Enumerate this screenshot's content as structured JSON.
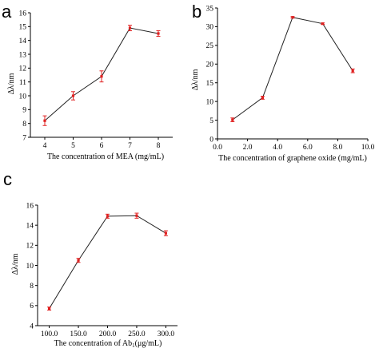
{
  "chart_data": [
    {
      "panel": "a",
      "type": "line",
      "xlabel": "The concentration of MEA (mg/mL)",
      "ylabel": "Δλ/nm",
      "xlim": [
        4,
        8
      ],
      "ylim": [
        7,
        16
      ],
      "xticks": [
        4,
        5,
        6,
        7,
        8
      ],
      "xtick_labels": [
        "4",
        "5",
        "6",
        "7",
        "8"
      ],
      "yticks": [
        7,
        8,
        9,
        10,
        11,
        12,
        13,
        14,
        15,
        16
      ],
      "ytick_labels": [
        "7",
        "8",
        "9",
        "10",
        "11",
        "12",
        "13",
        "14",
        "15",
        "16"
      ],
      "series": [
        {
          "x": [
            4,
            5,
            6,
            7,
            8
          ],
          "values": [
            8.2,
            10.0,
            11.4,
            14.9,
            14.5
          ],
          "errors": [
            0.35,
            0.3,
            0.4,
            0.2,
            0.2
          ]
        }
      ]
    },
    {
      "panel": "b",
      "type": "line",
      "xlabel": "The concentration of graphene oxide (mg/mL)",
      "ylabel": "Δλ/nm",
      "xlim": [
        0,
        10
      ],
      "ylim": [
        0,
        35
      ],
      "xticks": [
        0,
        2,
        4,
        6,
        8,
        10
      ],
      "xtick_labels": [
        "0.0",
        "2.0",
        "4.0",
        "6.0",
        "8.0",
        "10.0"
      ],
      "yticks": [
        0,
        5,
        10,
        15,
        20,
        25,
        30,
        35
      ],
      "ytick_labels": [
        "0",
        "5",
        "10",
        "15",
        "20",
        "25",
        "30",
        "35"
      ],
      "series": [
        {
          "x": [
            1,
            3,
            5,
            7,
            9
          ],
          "values": [
            5.1,
            11.0,
            32.5,
            30.8,
            18.2
          ],
          "errors": [
            0.5,
            0.4,
            0.2,
            0.2,
            0.5
          ]
        }
      ]
    },
    {
      "panel": "c",
      "type": "line",
      "xlabel": "The concentration of Ab1(μg/mL)",
      "xlabel_parts": {
        "before": "The concentration of Ab",
        "sub": "1",
        "after": "(μg/mL)"
      },
      "ylabel": "Δλ/nm",
      "xlim": [
        80,
        320
      ],
      "ylim": [
        4,
        16
      ],
      "xticks": [
        100,
        150,
        200,
        250,
        300
      ],
      "xtick_labels": [
        "100.0",
        "150.0",
        "200.0",
        "250.0",
        "300.0"
      ],
      "yticks": [
        4,
        6,
        8,
        10,
        12,
        14,
        16
      ],
      "ytick_labels": [
        "4",
        "6",
        "8",
        "10",
        "12",
        "14",
        "16"
      ],
      "series": [
        {
          "x": [
            100,
            150,
            200,
            250,
            300
          ],
          "values": [
            5.7,
            10.5,
            14.9,
            14.95,
            13.2
          ],
          "errors": [
            0.15,
            0.2,
            0.2,
            0.25,
            0.25
          ]
        }
      ]
    }
  ],
  "colors": {
    "marker": "#e02020",
    "line": "#222222",
    "axis": "#000000"
  }
}
